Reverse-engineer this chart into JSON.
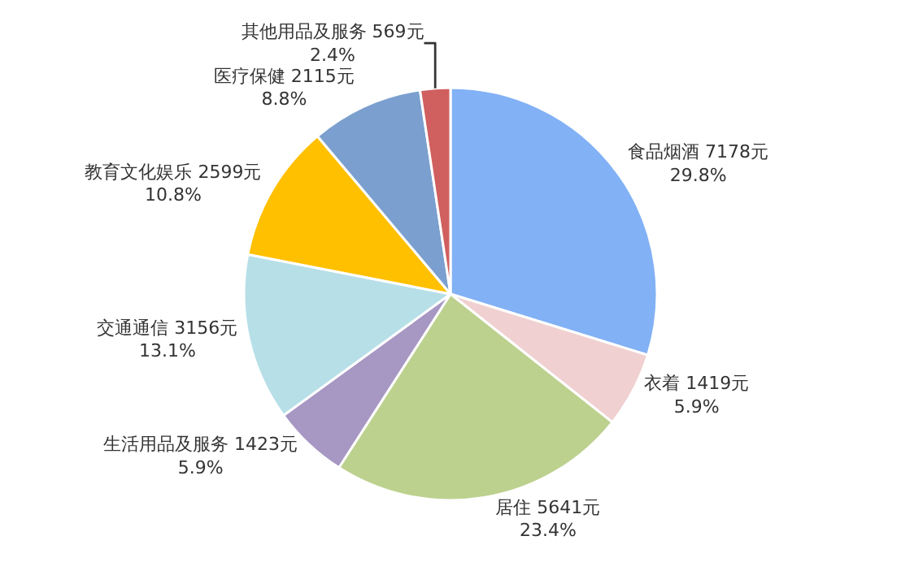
{
  "chart_data": {
    "type": "pie",
    "categories": [
      "食品烟酒",
      "衣着",
      "居住",
      "生活用品及服务",
      "交通通信",
      "教育文化娱乐",
      "医疗保健",
      "其他用品及服务"
    ],
    "values": [
      7178,
      1419,
      5641,
      1423,
      3156,
      2599,
      2115,
      569
    ],
    "value_labels": [
      "7178元\n29.8%",
      "1419元\n5.9%",
      "5641元\n23.4%",
      "1423元\n5.9%",
      "3156元\n13.1%",
      "2599元\n10.8%",
      "2115元\n8.8%",
      "569元\n2.4%"
    ],
    "colors": [
      "#82b1f5",
      "#f0d0d0",
      "#bdd18f",
      "#a797c3",
      "#b7dfe8",
      "#ffc000",
      "#7ba0cf",
      "#d05f5f"
    ],
    "legend": false
  }
}
